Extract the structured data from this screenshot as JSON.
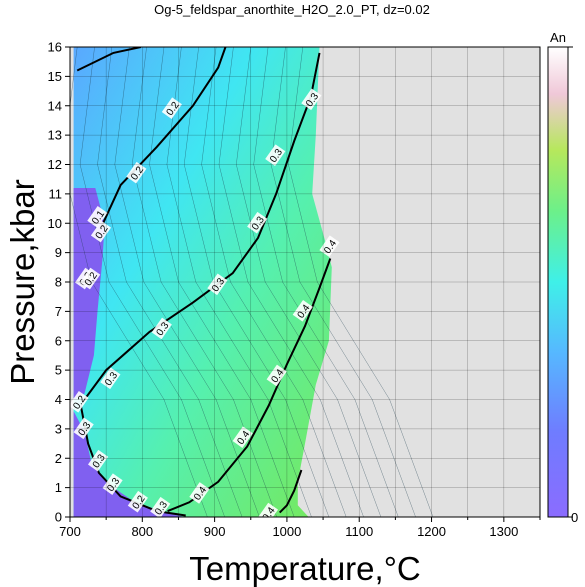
{
  "chart_data": {
    "type": "heatmap",
    "title": "Og-5_feldspar_anorthite_H2O_2.0_PT, dz=0.02",
    "xlabel": "Temperature,°C",
    "ylabel": "Pressure,kbar",
    "xlim": [
      700,
      1350
    ],
    "ylim": [
      0,
      16
    ],
    "xticks": [
      "700",
      "800",
      "900",
      "1000",
      "1100",
      "1200",
      "1300"
    ],
    "yticks": [
      "0",
      "1",
      "2",
      "3",
      "4",
      "5",
      "6",
      "7",
      "8",
      "9",
      "10",
      "11",
      "12",
      "13",
      "14",
      "15",
      "16"
    ],
    "grid": true,
    "colorbar": {
      "label": "An",
      "min_label": "0",
      "max_label": ""
    },
    "contours": [
      {
        "value": "0.2",
        "points": [
          [
            710,
            15.2
          ],
          [
            760,
            15.8
          ],
          [
            798,
            16
          ]
        ]
      },
      {
        "value": "0.2",
        "points": [
          [
            742,
            9.8
          ],
          [
            770,
            11.3
          ],
          [
            820,
            12.6
          ],
          [
            870,
            14.0
          ],
          [
            905,
            15.3
          ],
          [
            915,
            16
          ]
        ]
      },
      {
        "value": "0.3",
        "points": [
          [
            1045,
            15.8
          ],
          [
            1033,
            14.3
          ],
          [
            1010,
            12.8
          ],
          [
            985,
            11.0
          ],
          [
            960,
            9.5
          ],
          [
            925,
            8.3
          ],
          [
            870,
            7.3
          ],
          [
            810,
            6.3
          ],
          [
            750,
            5.0
          ],
          [
            720,
            4.0
          ]
        ]
      },
      {
        "value": "0.3",
        "points": [
          [
            715,
            3.8
          ],
          [
            725,
            2.5
          ],
          [
            740,
            1.5
          ],
          [
            770,
            0.7
          ],
          [
            820,
            0.2
          ],
          [
            860,
            0.05
          ]
        ]
      },
      {
        "value": "0.4",
        "points": [
          [
            1060,
            8.8
          ],
          [
            1045,
            7.8
          ],
          [
            1025,
            6.5
          ],
          [
            1000,
            5.2
          ],
          [
            975,
            3.8
          ],
          [
            945,
            2.4
          ],
          [
            905,
            1.2
          ],
          [
            865,
            0.5
          ],
          [
            835,
            0.2
          ]
        ]
      },
      {
        "value": "0.4",
        "points": [
          [
            1020,
            1.6
          ],
          [
            1010,
            0.9
          ],
          [
            1000,
            0.4
          ],
          [
            990,
            0.15
          ]
        ]
      }
    ],
    "contour_labels": [
      {
        "text": "0.2",
        "x": 842,
        "y": 13.9
      },
      {
        "text": "0.2",
        "x": 793,
        "y": 11.7
      },
      {
        "text": "0.1",
        "x": 739,
        "y": 10.2
      },
      {
        "text": "0.2",
        "x": 744,
        "y": 9.7
      },
      {
        "text": "0.2",
        "x": 722,
        "y": 8.1
      },
      {
        "text": "0.2",
        "x": 729,
        "y": 8.1
      },
      {
        "text": "0.2",
        "x": 713,
        "y": 3.9
      },
      {
        "text": "0.3",
        "x": 1035,
        "y": 14.2
      },
      {
        "text": "0.3",
        "x": 985,
        "y": 12.3
      },
      {
        "text": "0.3",
        "x": 960,
        "y": 10.0
      },
      {
        "text": "0.3",
        "x": 905,
        "y": 7.9
      },
      {
        "text": "0.3",
        "x": 828,
        "y": 6.4
      },
      {
        "text": "0.3",
        "x": 757,
        "y": 4.7
      },
      {
        "text": "0.3",
        "x": 720,
        "y": 3.0
      },
      {
        "text": "0.3",
        "x": 740,
        "y": 1.9
      },
      {
        "text": "0.3",
        "x": 760,
        "y": 1.1
      },
      {
        "text": "0.2",
        "x": 795,
        "y": 0.5
      },
      {
        "text": "0.3",
        "x": 826,
        "y": 0.3
      },
      {
        "text": "0.4",
        "x": 1060,
        "y": 9.2
      },
      {
        "text": "0.4",
        "x": 1023,
        "y": 7.0
      },
      {
        "text": "0.4",
        "x": 987,
        "y": 4.8
      },
      {
        "text": "0.4",
        "x": 940,
        "y": 2.7
      },
      {
        "text": "0.4",
        "x": 880,
        "y": 0.8
      },
      {
        "text": "0.4",
        "x": 975,
        "y": 0.1
      }
    ]
  }
}
